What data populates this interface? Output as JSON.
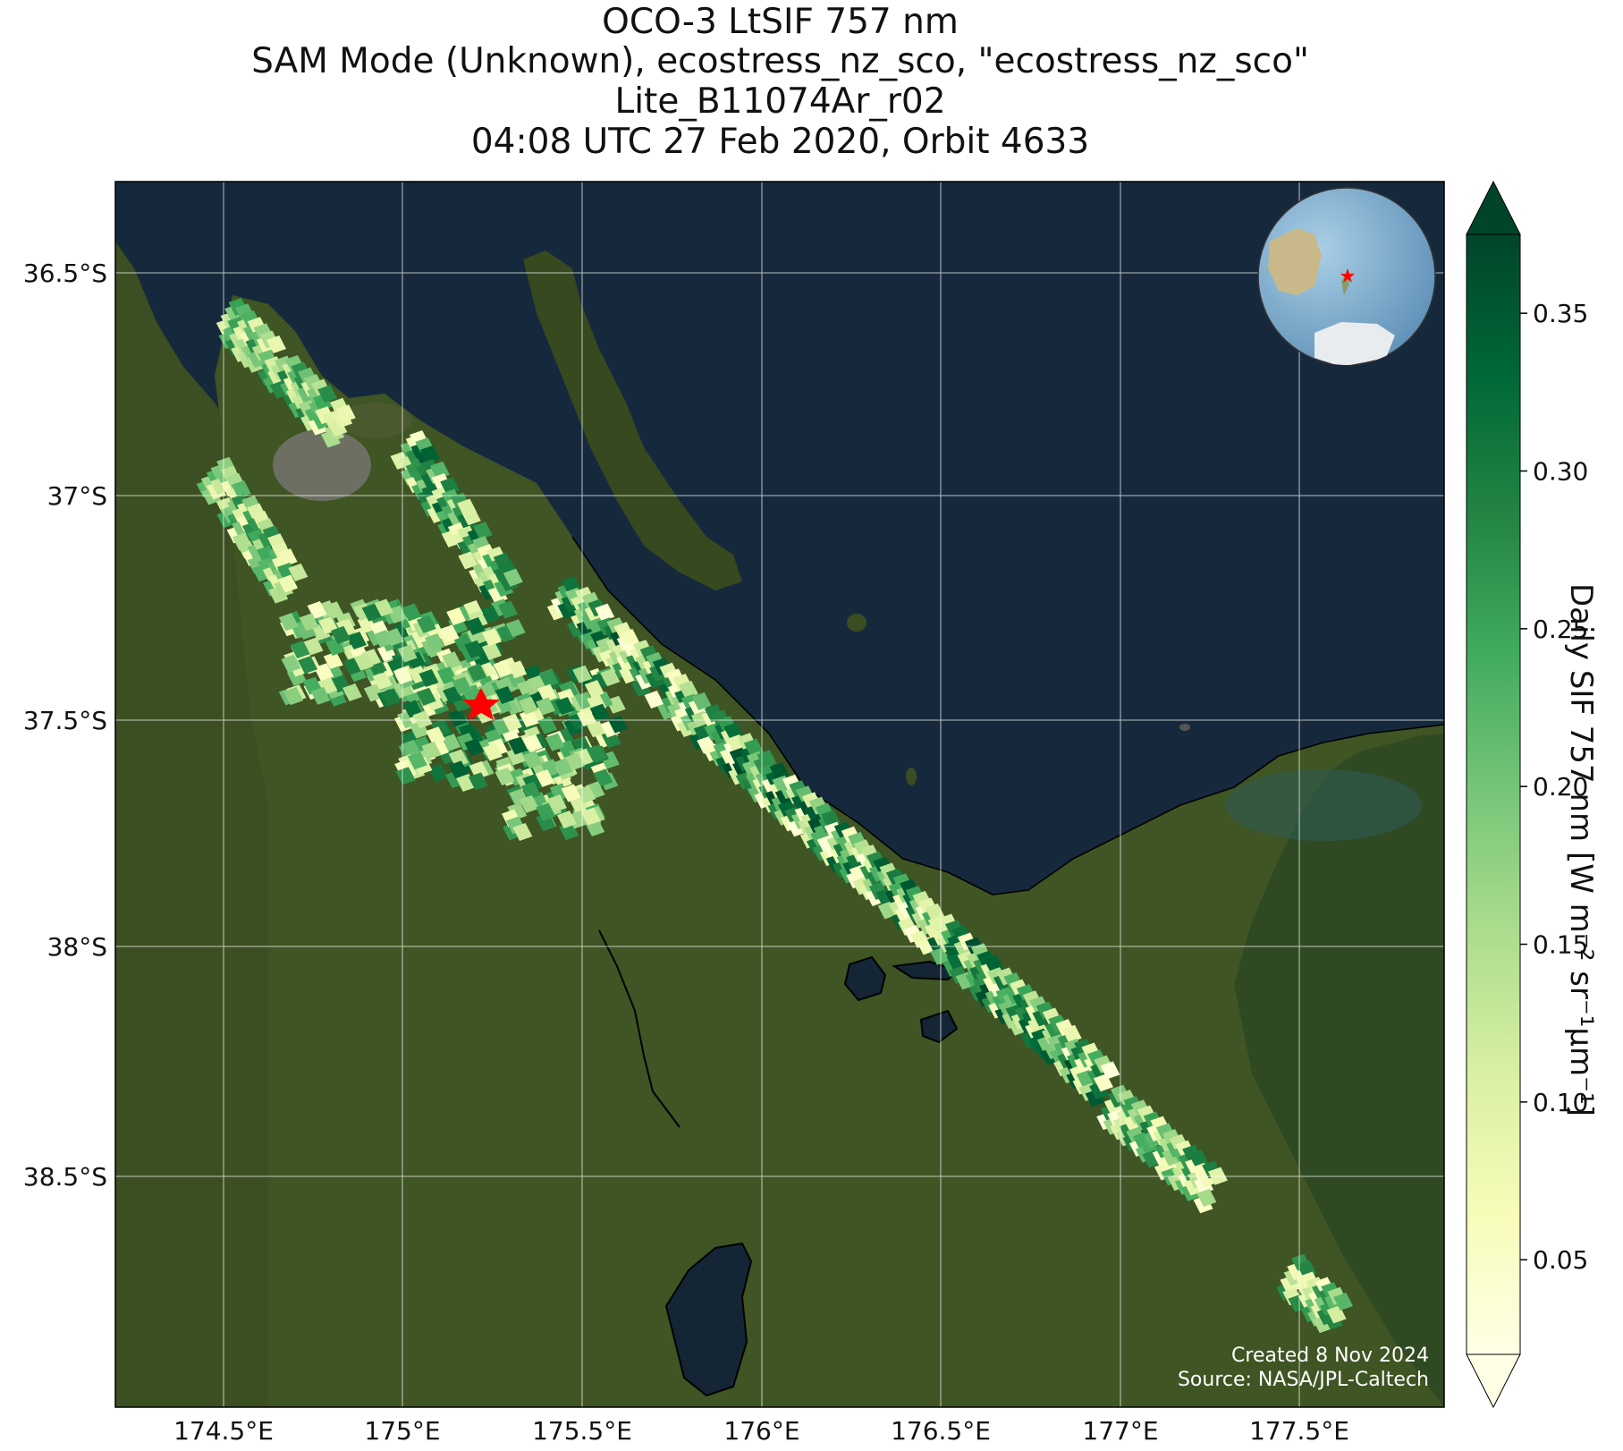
{
  "title": {
    "line1": "OCO-3 LtSIF 757 nm",
    "line2": "SAM Mode (Unknown), ecostress_nz_sco, \"ecostress_nz_sco\"",
    "line3": "Lite_B11074Ar_r02",
    "line4": "04:08 UTC 27 Feb 2020, Orbit 4633"
  },
  "map": {
    "lon_range": [
      174.2,
      177.9
    ],
    "lat_range": [
      -38.95,
      -36.3
    ],
    "lon_ticks": [
      174.5,
      175.0,
      175.5,
      176.0,
      176.5,
      177.0,
      177.5
    ],
    "lon_tick_labels": [
      "174.5°E",
      "175°E",
      "175.5°E",
      "176°E",
      "176.5°E",
      "177°E",
      "177.5°E"
    ],
    "lat_ticks": [
      -36.5,
      -37.0,
      -37.5,
      -38.0,
      -38.5
    ],
    "lat_tick_labels": [
      "36.5°S",
      "37°S",
      "37.5°S",
      "38°S",
      "38.5°S"
    ],
    "gridlines": true,
    "site_marker": {
      "lon": 175.22,
      "lat": -37.46,
      "color": "#ff0000",
      "icon": "star-icon"
    },
    "inset_globe": {
      "icon": "globe-icon",
      "marker_color": "#ff0000"
    },
    "colors": {
      "ocean": "#162a3e",
      "land": "#3b4f22"
    }
  },
  "credits": {
    "created": "Created 8 Nov 2024",
    "source": "Source: NASA/JPL-Caltech"
  },
  "colorbar": {
    "label": "Daily SIF 757 nm [W m⁻² sr⁻¹μm⁻¹]",
    "min": 0.02,
    "max": 0.375,
    "ticks": [
      0.05,
      0.1,
      0.15,
      0.2,
      0.25,
      0.3,
      0.35
    ],
    "tick_labels": [
      "0.05",
      "0.10",
      "0.15",
      "0.20",
      "0.25",
      "0.30",
      "0.35"
    ],
    "extend": "both",
    "colormap": "YlGn",
    "colors": [
      "#ffffe5",
      "#f7fcb9",
      "#d9f0a3",
      "#addd8e",
      "#78c679",
      "#41ab5d",
      "#238443",
      "#006837",
      "#004529"
    ]
  },
  "chart_data": {
    "type": "scatter",
    "title": "OCO-3 LtSIF 757 nm",
    "xlabel": "",
    "ylabel": "",
    "xlim": [
      174.2,
      177.9
    ],
    "ylim": [
      -38.95,
      -36.3
    ],
    "value_label": "Daily SIF 757 nm [W m⁻² sr⁻¹μm⁻¹]",
    "value_range": [
      0.02,
      0.375
    ],
    "swaths": [
      {
        "start": [
          174.52,
          -36.6
        ],
        "end": [
          174.82,
          -36.83
        ],
        "value_range": [
          0.05,
          0.3
        ]
      },
      {
        "start": [
          175.02,
          -36.88
        ],
        "end": [
          175.28,
          -37.18
        ],
        "value_range": [
          0.05,
          0.35
        ]
      },
      {
        "start": [
          174.48,
          -36.94
        ],
        "end": [
          174.68,
          -37.17
        ],
        "value_range": [
          0.05,
          0.28
        ]
      },
      {
        "start": [
          175.45,
          -37.2
        ],
        "end": [
          176.95,
          -38.25
        ],
        "value_range": [
          0.03,
          0.37
        ]
      },
      {
        "start": [
          176.98,
          -38.3
        ],
        "end": [
          177.25,
          -38.48
        ],
        "value_range": [
          0.03,
          0.3
        ]
      },
      {
        "start": [
          177.48,
          -38.67
        ],
        "end": [
          177.6,
          -38.75
        ],
        "value_range": [
          0.05,
          0.3
        ]
      }
    ],
    "clusters": [
      {
        "center": [
          175.0,
          -37.32
        ],
        "spread": [
          0.32,
          0.1
        ],
        "value_range": [
          0.04,
          0.33
        ]
      },
      {
        "center": [
          175.3,
          -37.48
        ],
        "spread": [
          0.3,
          0.12
        ],
        "value_range": [
          0.04,
          0.35
        ]
      },
      {
        "center": [
          175.42,
          -37.66
        ],
        "spread": [
          0.12,
          0.05
        ],
        "value_range": [
          0.05,
          0.3
        ]
      }
    ]
  }
}
